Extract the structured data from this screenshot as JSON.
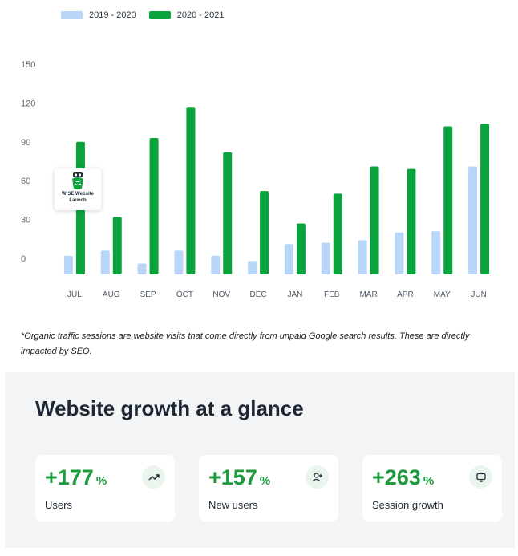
{
  "chart_data": {
    "type": "bar",
    "title": "",
    "xlabel": "",
    "ylabel": "",
    "categories": [
      "JUL",
      "AUG",
      "SEP",
      "OCT",
      "NOV",
      "DEC",
      "JAN",
      "FEB",
      "MAR",
      "APR",
      "MAY",
      "JUN"
    ],
    "series": [
      {
        "name": "2019 - 2020",
        "color": "#b9d5f7",
        "values": [
          2,
          6,
          -4,
          6,
          2,
          -2,
          11,
          12,
          14,
          20,
          21,
          71
        ]
      },
      {
        "name": "2020 - 2021",
        "color": "#0aa23c",
        "values": [
          90,
          32,
          93,
          117,
          82,
          52,
          27,
          50,
          71,
          69,
          102,
          104
        ]
      }
    ],
    "yticks": [
      0,
      30,
      60,
      90,
      120,
      150
    ],
    "ylim": [
      -10,
      150
    ],
    "grid": false,
    "legend": "top-left",
    "annotation": {
      "category": "JUL",
      "text": "WISE Website Launch"
    }
  },
  "footnote": "*Organic traffic sessions are website visits that come directly from unpaid Google search results. These are directly impacted by SEO.",
  "growth": {
    "title": "Website growth at a glance",
    "cards": [
      {
        "value": "+177",
        "pct": "%",
        "label": "Users",
        "icon": "trending-up-icon"
      },
      {
        "value": "+157",
        "pct": "%",
        "label": "New users",
        "icon": "add-user-icon"
      },
      {
        "value": "+263",
        "pct": "%",
        "label": "Session growth",
        "icon": "monitor-icon"
      }
    ]
  }
}
